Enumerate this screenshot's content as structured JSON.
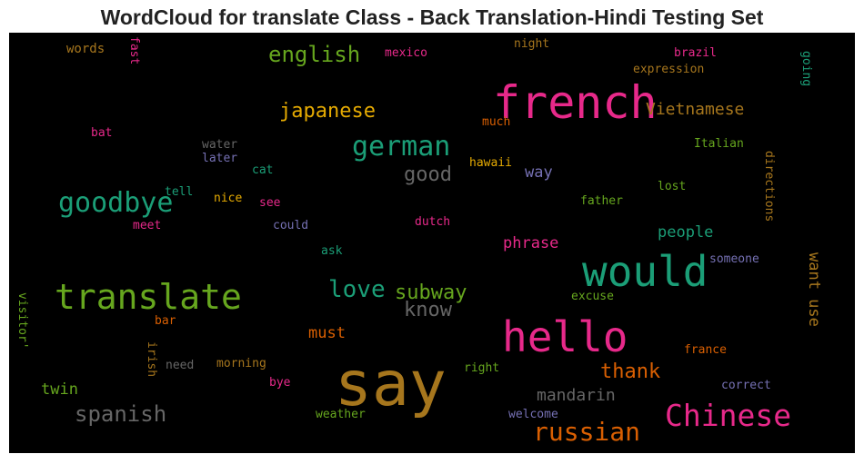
{
  "title": "WordCloud for translate Class - Back Translation-Hindi Testing Set",
  "colors": {
    "background": "#000000",
    "pink": "#e7298a",
    "green": "#66a61e",
    "teal": "#1b9e77",
    "orange": "#d95f02",
    "purple": "#7570b3",
    "gold": "#e6ab02",
    "brown": "#a6761d",
    "gray": "#666666"
  },
  "words": [
    {
      "text": "say",
      "color": "#a6761d"
    },
    {
      "text": "french",
      "color": "#e7298a"
    },
    {
      "text": "would",
      "color": "#1b9e77"
    },
    {
      "text": "hello",
      "color": "#e7298a"
    },
    {
      "text": "translate",
      "color": "#66a61e"
    },
    {
      "text": "Chinese",
      "color": "#e7298a"
    },
    {
      "text": "goodbye",
      "color": "#1b9e77"
    },
    {
      "text": "german",
      "color": "#1b9e77"
    },
    {
      "text": "russian",
      "color": "#d95f02"
    },
    {
      "text": "love",
      "color": "#1b9e77"
    },
    {
      "text": "spanish",
      "color": "#666666"
    },
    {
      "text": "english",
      "color": "#66a61e"
    },
    {
      "text": "japanese",
      "color": "#e6ab02"
    },
    {
      "text": "subway",
      "color": "#66a61e"
    },
    {
      "text": "good",
      "color": "#666666"
    },
    {
      "text": "know",
      "color": "#666666"
    },
    {
      "text": "thank",
      "color": "#d95f02"
    },
    {
      "text": "Vietnamese",
      "color": "#a6761d"
    },
    {
      "text": "mandarin",
      "color": "#666666"
    },
    {
      "text": "phrase",
      "color": "#e7298a"
    },
    {
      "text": "people",
      "color": "#1b9e77"
    },
    {
      "text": "want use",
      "color": "#a6761d"
    },
    {
      "text": "must",
      "color": "#d95f02"
    },
    {
      "text": "twin",
      "color": "#66a61e"
    },
    {
      "text": "way",
      "color": "#7570b3"
    },
    {
      "text": "words",
      "color": "#a6761d"
    },
    {
      "text": "fast",
      "color": "#e7298a"
    },
    {
      "text": "mexico",
      "color": "#e7298a"
    },
    {
      "text": "night",
      "color": "#a6761d"
    },
    {
      "text": "brazil",
      "color": "#e7298a"
    },
    {
      "text": "expression",
      "color": "#a6761d"
    },
    {
      "text": "going",
      "color": "#1b9e77"
    },
    {
      "text": "bat",
      "color": "#e7298a"
    },
    {
      "text": "much",
      "color": "#d95f02"
    },
    {
      "text": "water",
      "color": "#666666"
    },
    {
      "text": "later",
      "color": "#7570b3"
    },
    {
      "text": "Italian",
      "color": "#66a61e"
    },
    {
      "text": "cat",
      "color": "#1b9e77"
    },
    {
      "text": "hawaii",
      "color": "#e6ab02"
    },
    {
      "text": "tell",
      "color": "#1b9e77"
    },
    {
      "text": "nice",
      "color": "#e6ab02"
    },
    {
      "text": "see",
      "color": "#e7298a"
    },
    {
      "text": "lost",
      "color": "#66a61e"
    },
    {
      "text": "father",
      "color": "#66a61e"
    },
    {
      "text": "directions",
      "color": "#a6761d"
    },
    {
      "text": "meet",
      "color": "#e7298a"
    },
    {
      "text": "could",
      "color": "#7570b3"
    },
    {
      "text": "dutch",
      "color": "#e7298a"
    },
    {
      "text": "ask",
      "color": "#1b9e77"
    },
    {
      "text": "someone",
      "color": "#7570b3"
    },
    {
      "text": "visitor'",
      "color": "#66a61e"
    },
    {
      "text": "excuse",
      "color": "#66a61e"
    },
    {
      "text": "bar",
      "color": "#d95f02"
    },
    {
      "text": "irish",
      "color": "#a6761d"
    },
    {
      "text": "need",
      "color": "#666666"
    },
    {
      "text": "morning",
      "color": "#a6761d"
    },
    {
      "text": "right",
      "color": "#66a61e"
    },
    {
      "text": "france",
      "color": "#d95f02"
    },
    {
      "text": "bye",
      "color": "#e7298a"
    },
    {
      "text": "correct",
      "color": "#7570b3"
    },
    {
      "text": "weather",
      "color": "#66a61e"
    },
    {
      "text": "welcome",
      "color": "#7570b3"
    }
  ]
}
